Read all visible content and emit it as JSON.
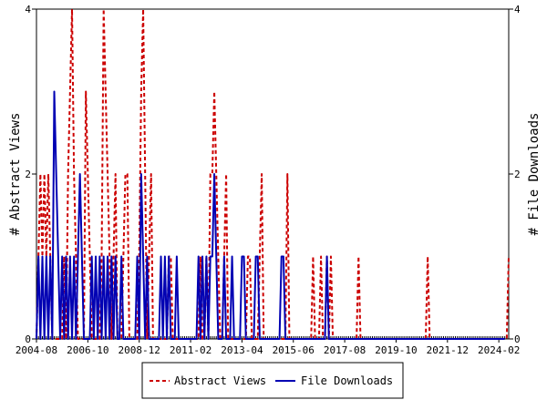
{
  "chart_data": {
    "type": "line",
    "title": "",
    "ylabel_left": "# Abstract Views",
    "ylabel_right": "# File Downloads",
    "ylim": [
      0,
      4
    ],
    "y_ticks": [
      0,
      2,
      4
    ],
    "x_tick_labels": [
      "2004-08",
      "2006-10",
      "2008-12",
      "2011-02",
      "2013-04",
      "2015-06",
      "2017-08",
      "2019-10",
      "2021-12",
      "2024-02"
    ],
    "x_start": "2004-08",
    "grid": false,
    "legend_placement": "bottom-center",
    "series": [
      {
        "name": "Abstract Views",
        "color": "#cc0000",
        "dash": "dashed",
        "values": [
          0,
          1,
          2,
          1,
          2,
          1,
          2,
          1,
          0,
          0,
          0,
          0,
          0,
          0,
          1,
          0,
          2,
          3,
          4,
          2,
          1,
          0,
          0,
          0,
          0,
          3,
          2,
          1,
          0,
          0,
          0,
          0,
          0,
          1,
          4,
          3,
          2,
          1,
          0,
          1,
          2,
          0,
          0,
          0,
          1,
          2,
          2,
          0,
          0,
          0,
          0,
          0,
          1,
          3,
          4,
          2,
          0,
          1,
          2,
          0,
          0,
          0,
          0,
          0,
          0,
          0,
          0,
          1,
          1,
          0,
          0,
          0,
          0,
          0,
          0,
          0,
          0,
          0,
          0,
          0,
          0,
          0,
          0,
          1,
          0,
          0,
          1,
          0,
          2,
          2,
          3,
          2,
          1,
          0,
          0,
          1,
          2,
          0,
          0,
          0,
          0,
          0,
          0,
          0,
          0,
          0,
          0,
          1,
          1,
          0,
          0,
          0,
          0,
          1,
          2,
          0,
          0,
          0,
          0,
          0,
          0,
          0,
          0,
          0,
          0,
          0,
          0,
          2,
          0,
          0,
          0,
          0,
          0,
          0,
          0,
          0,
          0,
          0,
          0,
          0,
          1,
          0,
          0,
          0,
          1,
          0,
          0,
          1,
          0,
          1,
          0,
          0,
          0,
          0,
          0,
          0,
          0,
          0,
          0,
          0,
          0,
          0,
          0,
          1,
          0,
          0,
          0,
          0,
          0,
          0,
          0,
          0,
          0,
          0,
          0,
          0,
          0,
          0,
          0,
          0,
          0,
          0,
          0,
          0,
          0,
          0,
          0,
          0,
          0,
          0,
          0,
          0,
          0,
          0,
          0,
          0,
          0,
          0,
          1,
          0,
          0,
          0,
          0,
          0,
          0,
          0,
          0,
          0,
          0,
          0,
          0,
          0,
          0,
          0,
          0,
          0,
          0,
          0,
          0,
          0,
          0,
          0,
          0,
          0,
          0,
          0,
          0,
          0,
          0,
          0,
          0,
          0,
          0,
          0,
          0,
          0,
          0,
          0,
          0,
          1
        ]
      },
      {
        "name": "File Downloads",
        "color": "#0000b3",
        "dash": "solid",
        "values": [
          0,
          1,
          0,
          1,
          0,
          1,
          0,
          1,
          0,
          3,
          2,
          1,
          0,
          1,
          0,
          1,
          0,
          1,
          0,
          1,
          0,
          1,
          2,
          1,
          0,
          0,
          0,
          0,
          1,
          0,
          1,
          0,
          1,
          0,
          1,
          0,
          1,
          0,
          1,
          0,
          1,
          0,
          0,
          1,
          0,
          0,
          0,
          0,
          0,
          0,
          0,
          1,
          0,
          2,
          1,
          0,
          1,
          0,
          0,
          0,
          0,
          0,
          0,
          1,
          0,
          1,
          0,
          1,
          0,
          0,
          0,
          1,
          0,
          0,
          0,
          0,
          0,
          0,
          0,
          0,
          0,
          0,
          1,
          0,
          1,
          0,
          1,
          0,
          1,
          1,
          2,
          1,
          0,
          0,
          0,
          1,
          0,
          0,
          0,
          1,
          0,
          0,
          0,
          0,
          1,
          1,
          0,
          0,
          0,
          0,
          0,
          1,
          1,
          0,
          0,
          0,
          0,
          0,
          0,
          0,
          0,
          0,
          0,
          0,
          1,
          1,
          0,
          0,
          0,
          0,
          0,
          0,
          0,
          0,
          0,
          0,
          0,
          0,
          0,
          0,
          0,
          0,
          0,
          0,
          0,
          0,
          0,
          1,
          0,
          0,
          0,
          0,
          0,
          0,
          0,
          0,
          0,
          0,
          0,
          0,
          0,
          0,
          0,
          0,
          0,
          0,
          0,
          0,
          0,
          0,
          0,
          0,
          0,
          0,
          0,
          0,
          0,
          0,
          0,
          0,
          0,
          0,
          0,
          0,
          0,
          0,
          0,
          0,
          0,
          0,
          0,
          0,
          0,
          0,
          0,
          0,
          0,
          0,
          0,
          0,
          0,
          0,
          0,
          0,
          0,
          0,
          0,
          0,
          0,
          0,
          0,
          0,
          0,
          0,
          0,
          0,
          0,
          0,
          0,
          0,
          0,
          0,
          0,
          0,
          0,
          0,
          0,
          0,
          0,
          0,
          0,
          0,
          0,
          0,
          0,
          0,
          0,
          0
        ]
      }
    ]
  },
  "legend": {
    "abstract_label": "Abstract Views",
    "downloads_label": "File Downloads"
  }
}
